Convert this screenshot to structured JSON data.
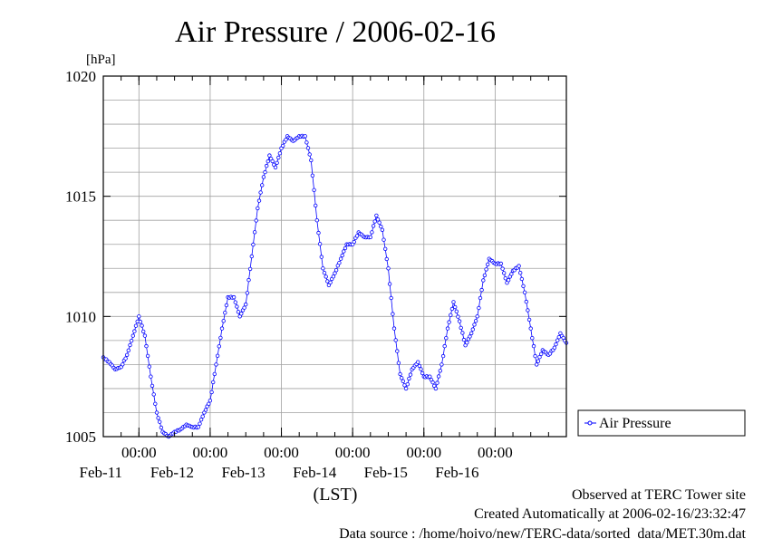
{
  "chart_data": {
    "type": "line",
    "title": "Air Pressure / 2006-02-16",
    "unit_label": "[hPa]",
    "xlabel": "(LST)",
    "ylim": [
      1005,
      1020
    ],
    "yticks": [
      "1005",
      "1010",
      "1015",
      "1020"
    ],
    "xlim": [
      "2006-02-10 12:00",
      "2006-02-16 24:00"
    ],
    "time_tick_label": "00:00",
    "date_ticks": [
      "Feb-11",
      "Feb-12",
      "Feb-13",
      "Feb-14",
      "Feb-15",
      "Feb-16"
    ],
    "grid": true,
    "legend_position": "right",
    "series": [
      {
        "name": "Air Pressure",
        "color": "#0000ff",
        "marker": "circle",
        "points": [
          [
            "2006-02-10 12:00",
            1008.3
          ],
          [
            "2006-02-10 14:00",
            1008.1
          ],
          [
            "2006-02-10 16:00",
            1007.8
          ],
          [
            "2006-02-10 18:00",
            1007.9
          ],
          [
            "2006-02-10 20:00",
            1008.4
          ],
          [
            "2006-02-10 22:00",
            1009.2
          ],
          [
            "2006-02-11 00:00",
            1010.0
          ],
          [
            "2006-02-11 02:00",
            1009.2
          ],
          [
            "2006-02-11 04:00",
            1007.5
          ],
          [
            "2006-02-11 06:00",
            1006.0
          ],
          [
            "2006-02-11 08:00",
            1005.2
          ],
          [
            "2006-02-11 10:00",
            1005.0
          ],
          [
            "2006-02-11 12:00",
            1005.2
          ],
          [
            "2006-02-11 14:00",
            1005.3
          ],
          [
            "2006-02-11 16:00",
            1005.5
          ],
          [
            "2006-02-11 18:00",
            1005.4
          ],
          [
            "2006-02-11 20:00",
            1005.4
          ],
          [
            "2006-02-11 22:00",
            1006.0
          ],
          [
            "2006-02-12 00:00",
            1006.5
          ],
          [
            "2006-02-12 02:00",
            1008.0
          ],
          [
            "2006-02-12 04:00",
            1009.5
          ],
          [
            "2006-02-12 06:00",
            1010.8
          ],
          [
            "2006-02-12 08:00",
            1010.8
          ],
          [
            "2006-02-12 10:00",
            1010.0
          ],
          [
            "2006-02-12 12:00",
            1010.5
          ],
          [
            "2006-02-12 14:00",
            1012.5
          ],
          [
            "2006-02-12 16:00",
            1014.5
          ],
          [
            "2006-02-12 18:00",
            1015.8
          ],
          [
            "2006-02-12 20:00",
            1016.7
          ],
          [
            "2006-02-12 22:00",
            1016.2
          ],
          [
            "2006-02-13 00:00",
            1017.0
          ],
          [
            "2006-02-13 02:00",
            1017.5
          ],
          [
            "2006-02-13 04:00",
            1017.3
          ],
          [
            "2006-02-13 06:00",
            1017.5
          ],
          [
            "2006-02-13 08:00",
            1017.5
          ],
          [
            "2006-02-13 10:00",
            1016.5
          ],
          [
            "2006-02-13 12:00",
            1014.0
          ],
          [
            "2006-02-13 14:00",
            1012.0
          ],
          [
            "2006-02-13 16:00",
            1011.3
          ],
          [
            "2006-02-13 18:00",
            1011.8
          ],
          [
            "2006-02-13 20:00",
            1012.4
          ],
          [
            "2006-02-13 22:00",
            1013.0
          ],
          [
            "2006-02-14 00:00",
            1013.0
          ],
          [
            "2006-02-14 02:00",
            1013.5
          ],
          [
            "2006-02-14 04:00",
            1013.3
          ],
          [
            "2006-02-14 06:00",
            1013.3
          ],
          [
            "2006-02-14 08:00",
            1014.2
          ],
          [
            "2006-02-14 10:00",
            1013.6
          ],
          [
            "2006-02-14 12:00",
            1012.0
          ],
          [
            "2006-02-14 14:00",
            1009.5
          ],
          [
            "2006-02-14 16:00",
            1007.6
          ],
          [
            "2006-02-14 18:00",
            1007.0
          ],
          [
            "2006-02-14 20:00",
            1007.8
          ],
          [
            "2006-02-14 22:00",
            1008.1
          ],
          [
            "2006-02-15 00:00",
            1007.5
          ],
          [
            "2006-02-15 02:00",
            1007.5
          ],
          [
            "2006-02-15 04:00",
            1007.0
          ],
          [
            "2006-02-15 06:00",
            1008.0
          ],
          [
            "2006-02-15 08:00",
            1009.5
          ],
          [
            "2006-02-15 10:00",
            1010.6
          ],
          [
            "2006-02-15 12:00",
            1009.8
          ],
          [
            "2006-02-15 14:00",
            1008.8
          ],
          [
            "2006-02-15 16:00",
            1009.3
          ],
          [
            "2006-02-15 18:00",
            1010.0
          ],
          [
            "2006-02-15 20:00",
            1011.5
          ],
          [
            "2006-02-15 22:00",
            1012.4
          ],
          [
            "2006-02-16 00:00",
            1012.2
          ],
          [
            "2006-02-16 02:00",
            1012.2
          ],
          [
            "2006-02-16 04:00",
            1011.4
          ],
          [
            "2006-02-16 06:00",
            1011.9
          ],
          [
            "2006-02-16 08:00",
            1012.1
          ],
          [
            "2006-02-16 10:00",
            1011.0
          ],
          [
            "2006-02-16 12:00",
            1009.5
          ],
          [
            "2006-02-16 14:00",
            1008.0
          ],
          [
            "2006-02-16 16:00",
            1008.6
          ],
          [
            "2006-02-16 18:00",
            1008.4
          ],
          [
            "2006-02-16 20:00",
            1008.7
          ],
          [
            "2006-02-16 22:00",
            1009.3
          ],
          [
            "2006-02-16 24:00",
            1008.9
          ]
        ]
      }
    ]
  },
  "footer": {
    "observed": "Observed at TERC Tower site",
    "created": "Created Automatically at 2006-02-16/23:32:47",
    "source": "Data source : /home/hoivo/new/TERC-data/sorted_data/MET.30m.dat"
  }
}
